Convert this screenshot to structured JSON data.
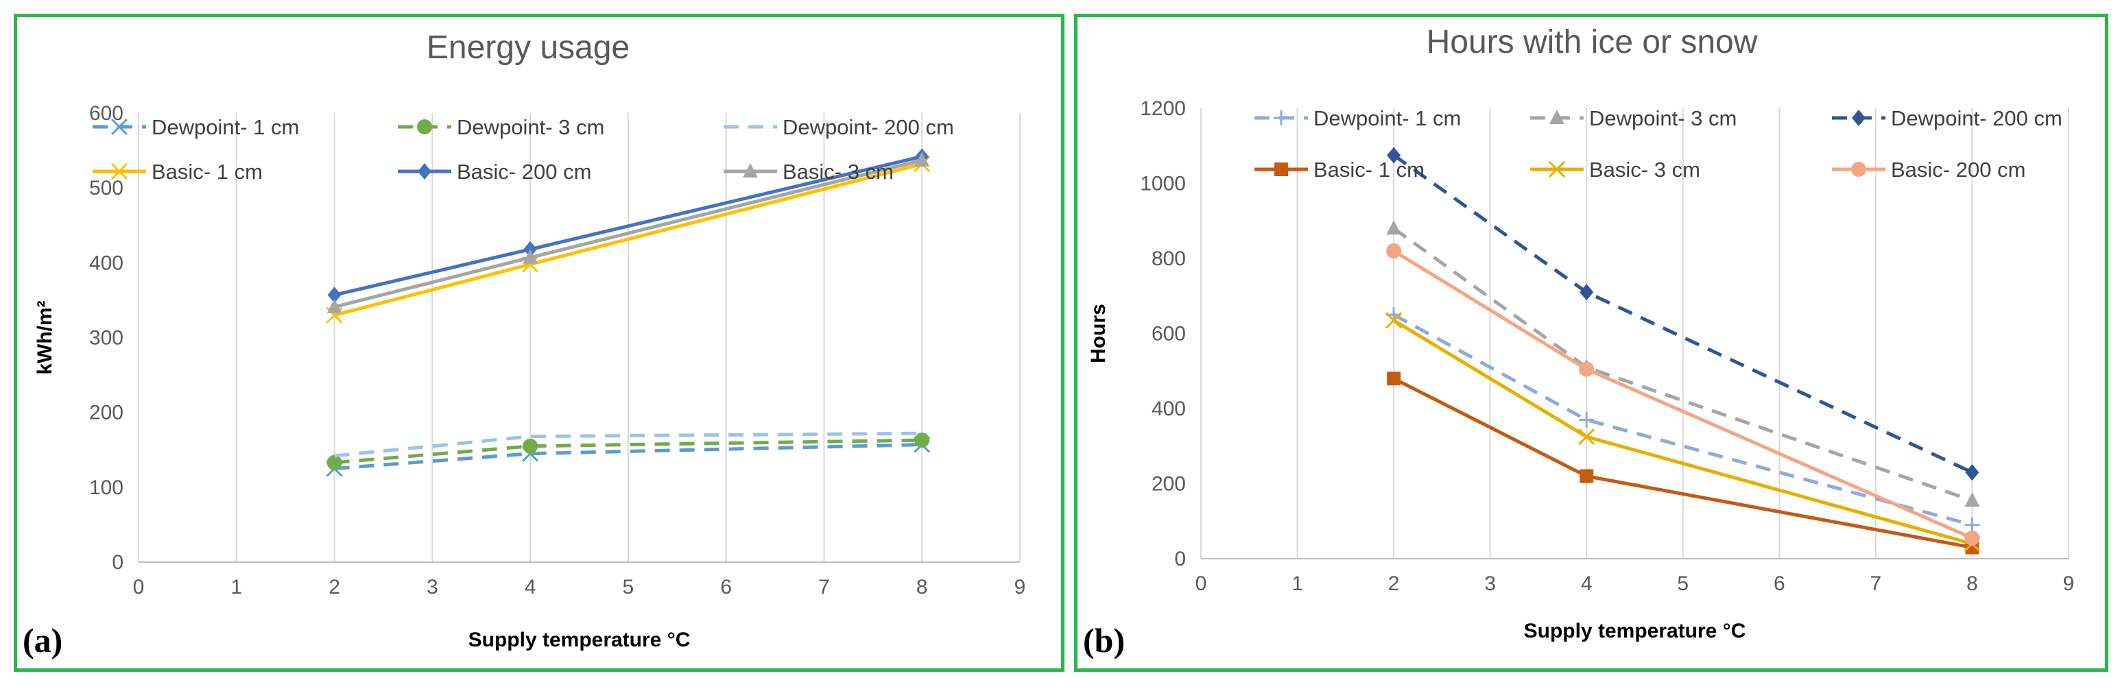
{
  "panels": [
    {
      "label": "(a)",
      "chart_data": {
        "type": "line",
        "title": "Energy usage",
        "xlabel": "Supply temperature °C",
        "ylabel": "kWh/m²",
        "xlim": [
          0,
          9
        ],
        "ylim": [
          0,
          600
        ],
        "xticks": [
          0,
          1,
          2,
          3,
          4,
          5,
          6,
          7,
          8,
          9
        ],
        "yticks": [
          0,
          100,
          200,
          300,
          400,
          500,
          600
        ],
        "grid": "vertical",
        "legend_position": "top",
        "series": [
          {
            "name": "Dewpoint- 1 cm",
            "x": [
              2,
              4,
              8
            ],
            "y": [
              125,
              145,
              157
            ],
            "color": "#5b9bd5",
            "dash": true,
            "marker": "x"
          },
          {
            "name": "Dewpoint- 3 cm",
            "x": [
              2,
              4,
              8
            ],
            "y": [
              133,
              155,
              163
            ],
            "color": "#70ad47",
            "dash": true,
            "marker": "circle"
          },
          {
            "name": "Dewpoint- 200 cm",
            "x": [
              2,
              4,
              8
            ],
            "y": [
              142,
              168,
              172
            ],
            "color": "#9dc3e6",
            "dash": true,
            "marker": "none"
          },
          {
            "name": "Basic- 1 cm",
            "x": [
              2,
              4,
              8
            ],
            "y": [
              330,
              398,
              532
            ],
            "color": "#ffc000",
            "dash": false,
            "marker": "x"
          },
          {
            "name": "Basic- 200 cm",
            "x": [
              2,
              4,
              8
            ],
            "y": [
              357,
              418,
              542
            ],
            "color": "#4472c4",
            "dash": false,
            "marker": "diamond"
          },
          {
            "name": "Basic- 3 cm",
            "x": [
              2,
              4,
              8
            ],
            "y": [
              341,
              407,
              537
            ],
            "color": "#a5a5a5",
            "dash": false,
            "marker": "triangle"
          }
        ]
      }
    },
    {
      "label": "(b)",
      "chart_data": {
        "type": "line",
        "title": "Hours with ice or snow",
        "xlabel": "Supply temperature °C",
        "ylabel": "Hours",
        "xlim": [
          0,
          9
        ],
        "ylim": [
          0,
          1200
        ],
        "xticks": [
          0,
          1,
          2,
          3,
          4,
          5,
          6,
          7,
          8,
          9
        ],
        "yticks": [
          0,
          200,
          400,
          600,
          800,
          1000,
          1200
        ],
        "grid": "vertical",
        "legend_position": "top",
        "series": [
          {
            "name": "Dewpoint- 1 cm",
            "x": [
              2,
              4,
              8
            ],
            "y": [
              650,
              370,
              90
            ],
            "color": "#8faadc",
            "dash": true,
            "marker": "plus"
          },
          {
            "name": "Dewpoint- 3 cm",
            "x": [
              2,
              4,
              8
            ],
            "y": [
              880,
              510,
              155
            ],
            "color": "#a5a5a5",
            "dash": true,
            "marker": "triangle"
          },
          {
            "name": "Dewpoint- 200 cm",
            "x": [
              2,
              4,
              8
            ],
            "y": [
              1075,
              710,
              230
            ],
            "color": "#2f5597",
            "dash": true,
            "marker": "diamond"
          },
          {
            "name": "Basic- 1 cm",
            "x": [
              2,
              4,
              8
            ],
            "y": [
              480,
              220,
              30
            ],
            "color": "#c55a11",
            "dash": false,
            "marker": "square"
          },
          {
            "name": "Basic- 3 cm",
            "x": [
              2,
              4,
              8
            ],
            "y": [
              635,
              325,
              40
            ],
            "color": "#e5b100",
            "dash": false,
            "marker": "x"
          },
          {
            "name": "Basic- 200 cm",
            "x": [
              2,
              4,
              8
            ],
            "y": [
              820,
              505,
              55
            ],
            "color": "#f4a582",
            "dash": false,
            "marker": "circle"
          }
        ]
      }
    }
  ]
}
